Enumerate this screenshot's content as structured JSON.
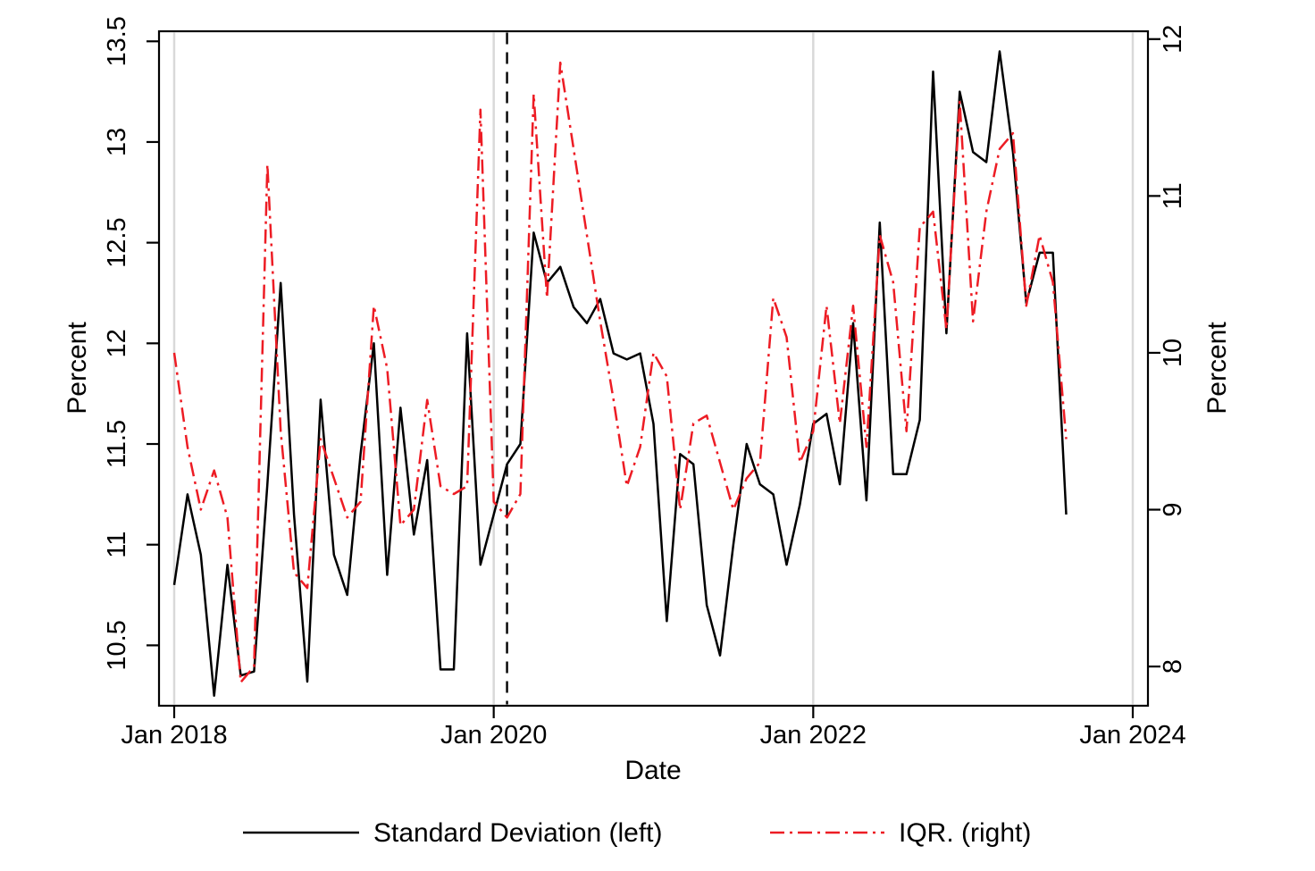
{
  "chart_data": {
    "type": "line",
    "title": "",
    "xlabel": "Date",
    "ylabel_left": "Percent",
    "ylabel_right": "Percent",
    "x_start": "2018-01",
    "x_frequency": "monthly",
    "x_axis_range_months": [
      0,
      72
    ],
    "x_tick_months": [
      0,
      24,
      48,
      72
    ],
    "x_tick_labels": [
      "Jan 2018",
      "Jan 2020",
      "Jan 2022",
      "Jan 2024"
    ],
    "left_axis": {
      "ticks": [
        10.5,
        11,
        11.5,
        12,
        12.5,
        13,
        13.5
      ],
      "range": [
        10.2,
        13.55
      ]
    },
    "right_axis": {
      "ticks": [
        8,
        9,
        10,
        11,
        12
      ],
      "range": [
        7.75,
        12.05
      ]
    },
    "grid": "vertical-only",
    "event_line_month": 25,
    "event_line_date": "2020-02",
    "legend_position": "bottom-center",
    "colors": {
      "grid": "#d9d9d9",
      "event_line": "#000000"
    },
    "series": [
      {
        "name": "Standard Deviation (left)",
        "axis": "left",
        "color": "#000000",
        "style": "solid",
        "values": [
          10.8,
          11.25,
          10.95,
          10.25,
          10.9,
          10.35,
          10.37,
          11.3,
          12.3,
          11.15,
          10.32,
          11.72,
          10.95,
          10.75,
          11.45,
          12.0,
          10.85,
          11.68,
          11.05,
          11.42,
          10.38,
          10.38,
          12.05,
          10.9,
          11.15,
          11.4,
          11.5,
          12.55,
          12.3,
          12.38,
          12.18,
          12.1,
          12.22,
          11.95,
          11.92,
          11.95,
          11.6,
          10.62,
          11.45,
          11.4,
          10.7,
          10.45,
          11.0,
          11.5,
          11.3,
          11.25,
          10.9,
          11.2,
          11.6,
          11.65,
          11.3,
          12.1,
          11.22,
          12.6,
          11.35,
          11.35,
          11.62,
          13.35,
          12.05,
          13.25,
          12.95,
          12.9,
          13.45,
          12.95,
          12.2,
          12.45,
          12.45,
          11.15
        ]
      },
      {
        "name": "IQR. (right)",
        "axis": "right",
        "color": "#ed1c24",
        "style": "dashdot",
        "values": [
          10.0,
          9.4,
          9.0,
          9.25,
          8.95,
          7.9,
          8.0,
          11.2,
          9.5,
          8.6,
          8.5,
          9.45,
          9.2,
          8.95,
          9.05,
          10.3,
          9.9,
          8.9,
          9.0,
          9.7,
          9.15,
          9.1,
          9.15,
          11.55,
          9.05,
          8.95,
          9.1,
          11.65,
          10.35,
          11.85,
          11.3,
          10.75,
          10.2,
          9.7,
          9.15,
          9.4,
          10.0,
          9.85,
          9.0,
          9.55,
          9.6,
          9.3,
          9.0,
          9.2,
          9.3,
          10.35,
          10.1,
          9.3,
          9.5,
          10.3,
          9.55,
          10.3,
          9.4,
          10.75,
          10.45,
          9.5,
          10.8,
          10.9,
          10.15,
          11.6,
          10.2,
          10.9,
          11.3,
          11.4,
          10.3,
          10.75,
          10.45,
          9.45
        ]
      }
    ],
    "legend": [
      "Standard Deviation (left)",
      "IQR. (right)"
    ]
  }
}
